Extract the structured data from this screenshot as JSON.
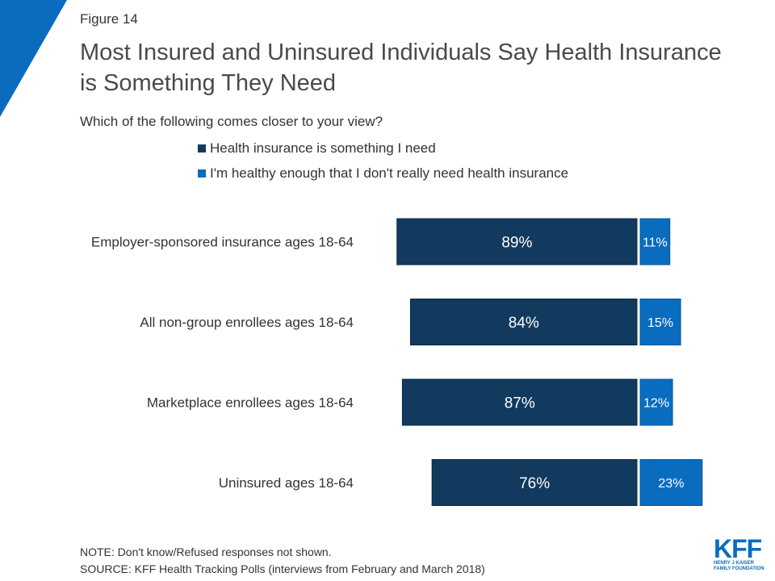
{
  "figure_label": "Figure 14",
  "title": "Most Insured and Uninsured Individuals Say Health Insurance is Something They Need",
  "subtitle": "Which of the following comes closer to your view?",
  "note": "NOTE: Don't know/Refused responses not shown.",
  "source": "SOURCE: KFF Health Tracking Polls (interviews from February and March 2018)",
  "logo": {
    "letters": "KFF",
    "line1": "HENRY J KAISER",
    "line2": "FAMILY FOUNDATION"
  },
  "colors": {
    "need": "#123a5e",
    "dont_need": "#0a6cbf",
    "accent": "#0a6cbf"
  },
  "chart_data": {
    "type": "bar",
    "orientation": "horizontal",
    "layout": "diverging",
    "categories": [
      "Employer-sponsored insurance ages 18-64",
      "All non-group enrollees ages 18-64",
      "Marketplace enrollees ages 18-64",
      "Uninsured ages 18-64"
    ],
    "series": [
      {
        "name": "Health insurance is something I need",
        "values": [
          89,
          84,
          87,
          76
        ],
        "labels": [
          "89%",
          "84%",
          "87%",
          "76%"
        ]
      },
      {
        "name": "I'm healthy enough that I don't really need health insurance",
        "values": [
          11,
          15,
          12,
          23
        ],
        "labels": [
          "11%",
          "15%",
          "12%",
          "23%"
        ]
      }
    ],
    "legend_position": "top",
    "grid": false
  }
}
